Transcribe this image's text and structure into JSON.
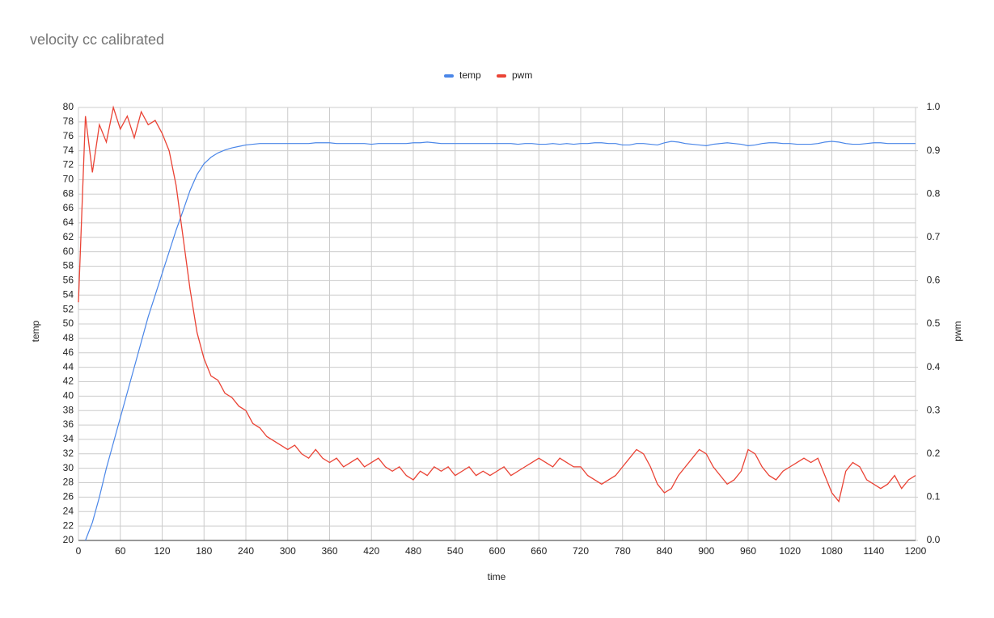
{
  "chart_data": {
    "type": "line",
    "title": "velocity cc calibrated",
    "x_label": "time",
    "y_label": "temp",
    "y2_label": "pwm",
    "x": [
      0,
      10,
      20,
      30,
      40,
      50,
      60,
      70,
      80,
      90,
      100,
      110,
      120,
      130,
      140,
      150,
      160,
      170,
      180,
      190,
      200,
      210,
      220,
      230,
      240,
      250,
      260,
      270,
      280,
      290,
      300,
      310,
      320,
      330,
      340,
      350,
      360,
      370,
      380,
      390,
      400,
      410,
      420,
      430,
      440,
      450,
      460,
      470,
      480,
      490,
      500,
      510,
      520,
      530,
      540,
      550,
      560,
      570,
      580,
      590,
      600,
      610,
      620,
      630,
      640,
      650,
      660,
      670,
      680,
      690,
      700,
      710,
      720,
      730,
      740,
      750,
      760,
      770,
      780,
      790,
      800,
      810,
      820,
      830,
      840,
      850,
      860,
      870,
      880,
      890,
      900,
      910,
      920,
      930,
      940,
      950,
      960,
      970,
      980,
      990,
      1000,
      1010,
      1020,
      1030,
      1040,
      1050,
      1060,
      1070,
      1080,
      1090,
      1100,
      1110,
      1120,
      1130,
      1140,
      1150,
      1160,
      1170,
      1180,
      1190,
      1200
    ],
    "series": [
      {
        "name": "temp",
        "color": "#4a86e8",
        "values": [
          null,
          20,
          22.5,
          26,
          30,
          33.5,
          37,
          40.5,
          44,
          47.5,
          51,
          54,
          57,
          60,
          63,
          65.7,
          68.5,
          70.7,
          72.2,
          73.1,
          73.7,
          74.1,
          74.4,
          74.6,
          74.8,
          74.9,
          75,
          75,
          75,
          75,
          75,
          75,
          75,
          75,
          75.1,
          75.1,
          75.1,
          75,
          75,
          75,
          75,
          75,
          74.9,
          75,
          75,
          75,
          75,
          75,
          75.1,
          75.1,
          75.2,
          75.1,
          75,
          75,
          75,
          75,
          75,
          75,
          75,
          75,
          75,
          75,
          75,
          74.9,
          75,
          75,
          74.9,
          74.9,
          75,
          74.9,
          75,
          74.9,
          75,
          75,
          75.1,
          75.1,
          75,
          75,
          74.8,
          74.8,
          75,
          75,
          74.9,
          74.8,
          75.1,
          75.3,
          75.2,
          75,
          74.9,
          74.8,
          74.7,
          74.9,
          75,
          75.1,
          75,
          74.9,
          74.7,
          74.8,
          75,
          75.1,
          75.1,
          75,
          75,
          74.9,
          74.9,
          74.9,
          75,
          75.2,
          75.3,
          75.2,
          75,
          74.9,
          74.9,
          75,
          75.1,
          75.1,
          75,
          75,
          75,
          75,
          75
        ]
      },
      {
        "name": "pwm",
        "color": "#ea4335",
        "axis": "y2",
        "values": [
          0.55,
          0.98,
          0.85,
          0.96,
          0.92,
          1.0,
          0.95,
          0.98,
          0.93,
          0.99,
          0.96,
          0.97,
          0.94,
          0.9,
          0.82,
          0.7,
          0.58,
          0.48,
          0.42,
          0.38,
          0.37,
          0.34,
          0.33,
          0.31,
          0.3,
          0.27,
          0.26,
          0.24,
          0.23,
          0.22,
          0.21,
          0.22,
          0.2,
          0.19,
          0.21,
          0.19,
          0.18,
          0.19,
          0.17,
          0.18,
          0.19,
          0.17,
          0.18,
          0.19,
          0.17,
          0.16,
          0.17,
          0.15,
          0.14,
          0.16,
          0.15,
          0.17,
          0.16,
          0.17,
          0.15,
          0.16,
          0.17,
          0.15,
          0.16,
          0.15,
          0.16,
          0.17,
          0.15,
          0.16,
          0.17,
          0.18,
          0.19,
          0.18,
          0.17,
          0.19,
          0.18,
          0.17,
          0.17,
          0.15,
          0.14,
          0.13,
          0.14,
          0.15,
          0.17,
          0.19,
          0.21,
          0.2,
          0.17,
          0.13,
          0.11,
          0.12,
          0.15,
          0.17,
          0.19,
          0.21,
          0.2,
          0.17,
          0.15,
          0.13,
          0.14,
          0.16,
          0.21,
          0.2,
          0.17,
          0.15,
          0.14,
          0.16,
          0.17,
          0.18,
          0.19,
          0.18,
          0.19,
          0.15,
          0.11,
          0.09,
          0.16,
          0.18,
          0.17,
          0.14,
          0.13,
          0.12,
          0.13,
          0.15,
          0.12,
          0.14,
          0.15
        ]
      }
    ],
    "xlim": [
      0,
      1200
    ],
    "xticks": [
      0,
      60,
      120,
      180,
      240,
      300,
      360,
      420,
      480,
      540,
      600,
      660,
      720,
      780,
      840,
      900,
      960,
      1020,
      1080,
      1140,
      1200
    ],
    "ylim": [
      20,
      80
    ],
    "yticks": [
      20,
      22,
      24,
      26,
      28,
      30,
      32,
      34,
      36,
      38,
      40,
      42,
      44,
      46,
      48,
      50,
      52,
      54,
      56,
      58,
      60,
      62,
      64,
      66,
      68,
      70,
      72,
      74,
      76,
      78,
      80
    ],
    "y2lim": [
      0,
      1
    ],
    "y2ticks": [
      {
        "value": 0,
        "label": "0.0"
      },
      0.1,
      0.2,
      0.3,
      0.4,
      0.5,
      0.6,
      0.7,
      0.8,
      0.9,
      {
        "value": 1,
        "label": "1.0"
      }
    ],
    "grid": true,
    "legend": "top"
  }
}
